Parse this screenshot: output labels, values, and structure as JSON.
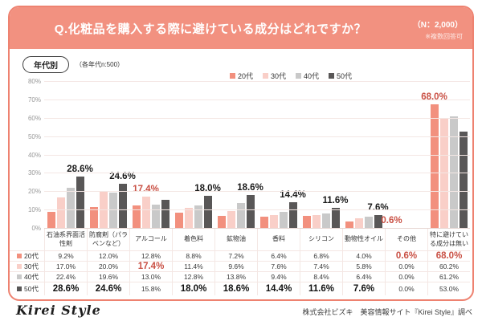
{
  "colors": {
    "banner": "#f29180",
    "card_border": "#ee8270",
    "red_text": "#c94f43",
    "grid": "#f4e7e4",
    "axis_text": "#999999"
  },
  "header": {
    "title": "Q.化粧品を購入する際に避けている成分はどれですか？",
    "n_label": "（N：2,000）",
    "note": "※複数回答可"
  },
  "controls": {
    "pill_label": "年代別",
    "pill_sub": "（各年代n:500）"
  },
  "footer": {
    "logo_text": "Kirei Style",
    "source_text": "株式会社ビズキ　美容情報サイト『Kirei Style』調べ"
  },
  "chart_data": {
    "type": "bar",
    "title": "Q.化粧品を購入する際に避けている成分はどれですか？",
    "categories": [
      "石油系界面活性剤",
      "防腐剤（パラベンなど）",
      "アルコール",
      "着色料",
      "鉱物油",
      "香料",
      "シリコン",
      "動物性オイル",
      "その他",
      "特に避けている成分は無い"
    ],
    "series": [
      {
        "name": "20代",
        "color": "#f2907e",
        "values": [
          9.2,
          12.0,
          12.8,
          8.8,
          7.2,
          6.4,
          6.8,
          4.0,
          0.6,
          68.0
        ]
      },
      {
        "name": "30代",
        "color": "#f9cfc8",
        "values": [
          17.0,
          20.0,
          17.4,
          11.4,
          9.6,
          7.6,
          7.4,
          5.8,
          0.0,
          60.2
        ]
      },
      {
        "name": "40代",
        "color": "#c9c9c9",
        "values": [
          22.4,
          19.6,
          13.0,
          12.8,
          13.8,
          9.4,
          8.4,
          6.4,
          0.0,
          61.2
        ]
      },
      {
        "name": "50代",
        "color": "#595757",
        "values": [
          28.6,
          24.6,
          15.8,
          18.0,
          18.6,
          14.4,
          11.6,
          7.6,
          0.0,
          53.0
        ]
      }
    ],
    "ylim": [
      0,
      80
    ],
    "ytick_step": 10,
    "ytick_suffix": "%",
    "grid": true,
    "legend_position": "top-right",
    "annotations": [
      {
        "cat": 0,
        "bar": 3,
        "text": "28.6%",
        "red": false
      },
      {
        "cat": 1,
        "bar": 3,
        "text": "24.6%",
        "red": false
      },
      {
        "cat": 2,
        "bar": 1,
        "text": "17.4%",
        "red": true
      },
      {
        "cat": 3,
        "bar": 3,
        "text": "18.0%",
        "red": false
      },
      {
        "cat": 4,
        "bar": 3,
        "text": "18.6%",
        "red": false
      },
      {
        "cat": 5,
        "bar": 3,
        "text": "14.4%",
        "red": false
      },
      {
        "cat": 6,
        "bar": 3,
        "text": "11.6%",
        "red": false
      },
      {
        "cat": 7,
        "bar": 3,
        "text": "7.6%",
        "red": false
      },
      {
        "cat": 8,
        "bar": 0,
        "text": "0.6%",
        "red": true
      },
      {
        "cat": 9,
        "bar": 0,
        "text": "68.0%",
        "red": true
      }
    ],
    "table_emphasis": [
      [
        "n",
        "n",
        "n",
        "n",
        "n",
        "n",
        "n",
        "n",
        "r",
        "r"
      ],
      [
        "n",
        "n",
        "r",
        "n",
        "n",
        "n",
        "n",
        "n",
        "n",
        "n"
      ],
      [
        "n",
        "n",
        "n",
        "n",
        "n",
        "n",
        "n",
        "n",
        "n",
        "n"
      ],
      [
        "b",
        "b",
        "n",
        "b",
        "b",
        "b",
        "b",
        "b",
        "n",
        "n"
      ]
    ],
    "value_suffix": "%"
  }
}
